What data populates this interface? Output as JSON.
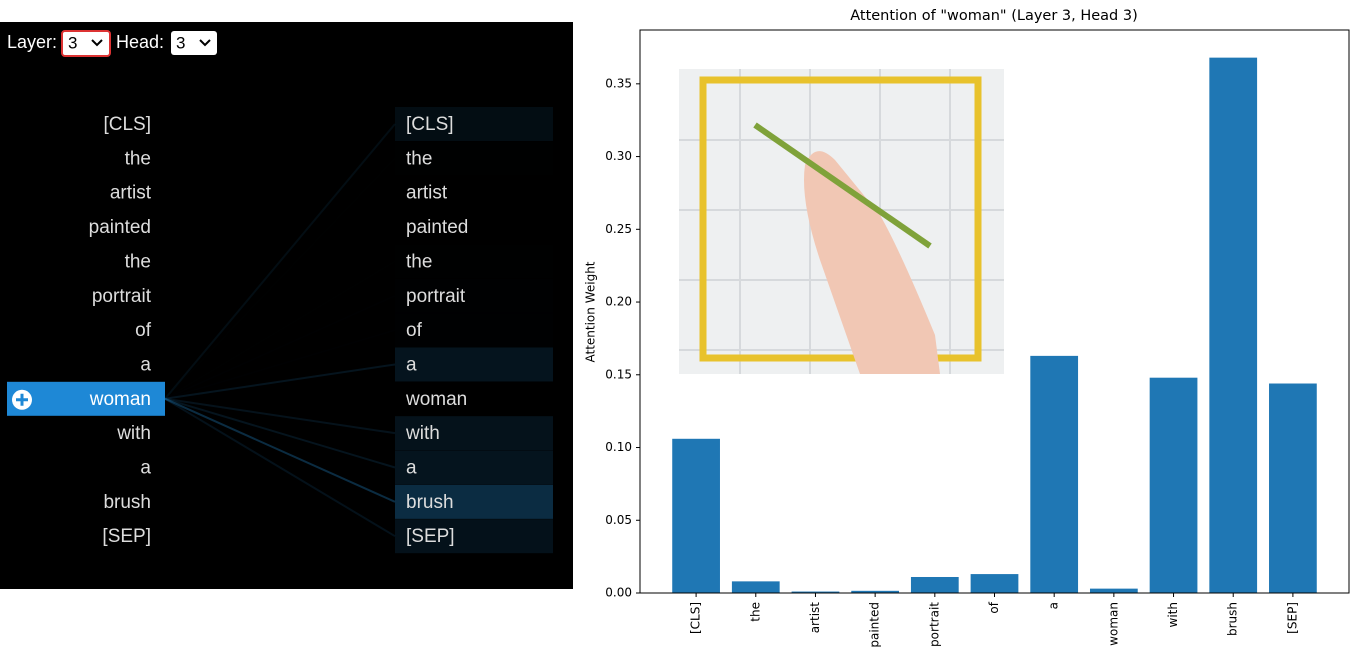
{
  "controls": {
    "layer_label": "Layer:",
    "layer": "3",
    "head_label": "Head:",
    "head": "3"
  },
  "attention": {
    "tokens_left": [
      "[CLS]",
      "the",
      "artist",
      "painted",
      "the",
      "portrait",
      "of",
      "a",
      "woman",
      "with",
      "a",
      "brush",
      "[SEP]"
    ],
    "tokens_right": [
      "[CLS]",
      "the",
      "artist",
      "painted",
      "the",
      "portrait",
      "of",
      "a",
      "woman",
      "with",
      "a",
      "brush",
      "[SEP]"
    ],
    "selected": 8,
    "color": "#1f77b4"
  },
  "chart_data": {
    "type": "bar",
    "title": "Attention of \"woman\" (Layer 3, Head 3)",
    "y_label": "Attention Weight",
    "categories": [
      "[CLS]",
      "the",
      "artist",
      "painted",
      "portrait",
      "of",
      "a",
      "woman",
      "with",
      "brush",
      "[SEP]"
    ],
    "values": [
      0.106,
      0.008,
      0.001,
      0.0015,
      0.011,
      0.013,
      0.163,
      0.003,
      0.148,
      0.368,
      0.144
    ],
    "color": "#1f77b4",
    "ylim": [
      0,
      0.387
    ],
    "yticks": [
      {
        "value": 0,
        "label": "0.00"
      },
      {
        "value": 0.05,
        "label": "0.05"
      },
      {
        "value": 0.1,
        "label": "0.10"
      },
      {
        "value": 0.15,
        "label": "0.15"
      },
      {
        "value": 0.2,
        "label": "0.20"
      },
      {
        "value": 0.25,
        "label": "0.25"
      },
      {
        "value": 0.3,
        "label": "0.30"
      },
      {
        "value": 0.35,
        "label": "0.35"
      }
    ],
    "grid": false
  }
}
